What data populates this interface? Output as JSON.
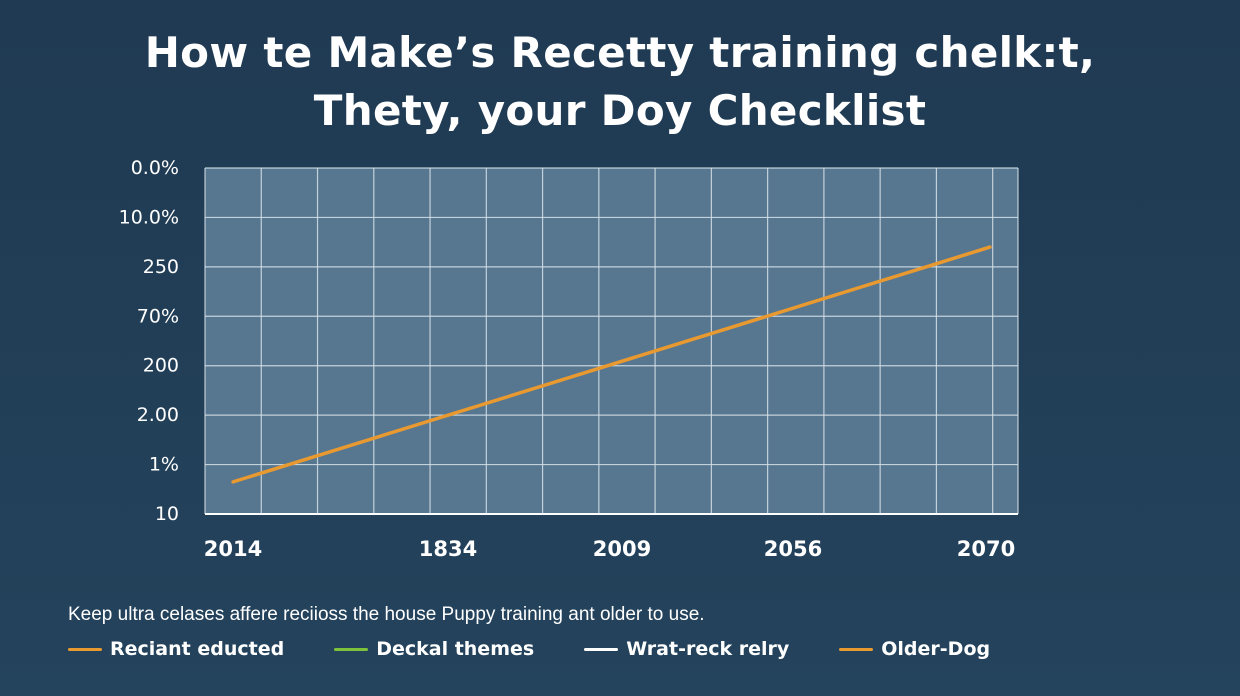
{
  "chart_data": {
    "type": "line",
    "title": "How te Make’s Recetty training chelk:t, Thety, your Doy Checklist",
    "title_lines": [
      "How te Make’s Recetty training chelk:t,",
      "Thety, your Doy Checklist"
    ],
    "y_tick_labels": [
      "0.0%",
      "10.0%",
      "250",
      "70%",
      "200",
      "2.00",
      "1%",
      "10"
    ],
    "x_tick_labels": [
      "2014",
      "1834",
      "2009",
      "2056",
      "2070"
    ],
    "x_range": [
      0,
      14.5
    ],
    "y_range": [
      0,
      7
    ],
    "grid": true,
    "series": [
      {
        "name": "Reciant educted",
        "color": "#e8992f",
        "points": [
          {
            "x": 0.5,
            "y": 0.65
          },
          {
            "x": 14,
            "y": 5.4
          }
        ]
      }
    ],
    "caption": "Keep ultra celases affere reciioss the house Puppy training ant older to use.",
    "legend": [
      {
        "label": "Reciant educted",
        "color": "#e8992f"
      },
      {
        "label": "Deckal themes",
        "color": "#7dc23a"
      },
      {
        "label": "Wrat-reck relry",
        "color": "#ffffff"
      },
      {
        "label": "Older-Dog",
        "color": "#e8992f"
      }
    ]
  }
}
